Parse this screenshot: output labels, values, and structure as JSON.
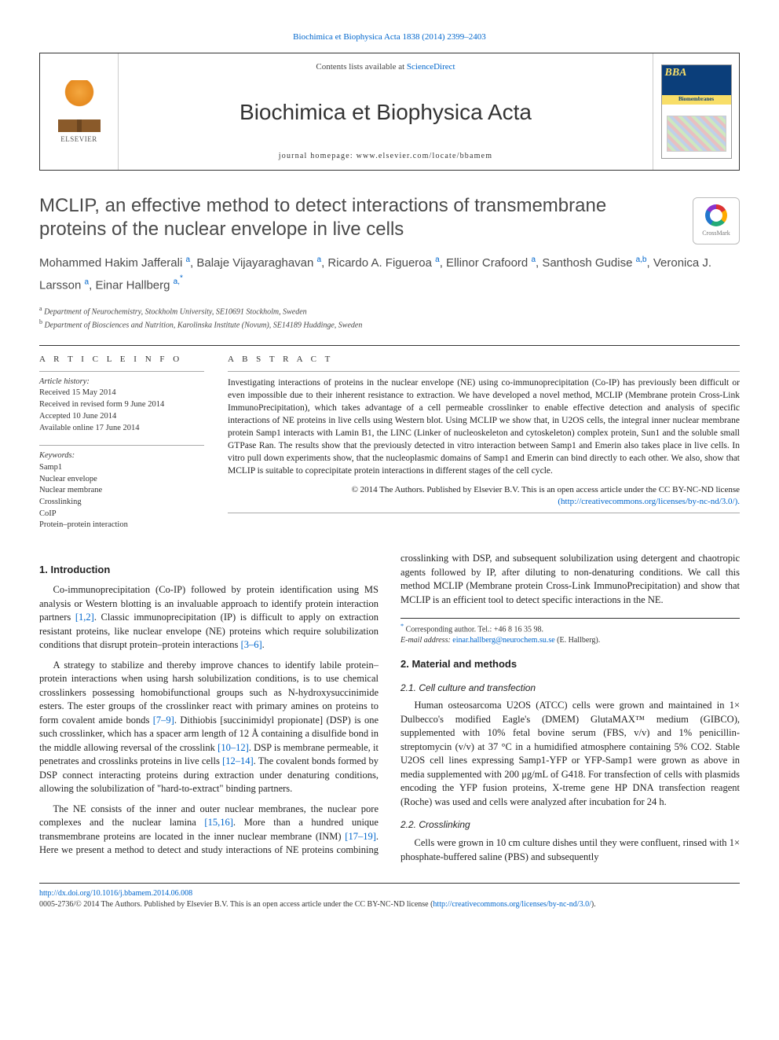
{
  "top_citation": "Biochimica et Biophysica Acta 1838 (2014) 2399–2403",
  "masthead": {
    "contents_prefix": "Contents lists available at ",
    "contents_link": "ScienceDirect",
    "journal": "Biochimica et Biophysica Acta",
    "homepage_prefix": "journal homepage: ",
    "homepage": "www.elsevier.com/locate/bbamem",
    "publisher": "ELSEVIER",
    "cover_tag": "BBA",
    "cover_sub": "Biomembranes"
  },
  "crossmark_label": "CrossMark",
  "title": "MCLIP, an effective method to detect interactions of transmembrane proteins of the nuclear envelope in live cells",
  "authors_html": "Mohammed Hakim Jafferali <sup>a</sup>, Balaje Vijayaraghavan <sup>a</sup>, Ricardo A. Figueroa <sup>a</sup>, Ellinor Crafoord <sup>a</sup>, Santhosh Gudise <sup>a,b</sup>, Veronica J. Larsson <sup>a</sup>, Einar Hallberg <sup>a,*</sup>",
  "affiliations": {
    "a": "Department of Neurochemistry, Stockholm University, SE10691 Stockholm, Sweden",
    "b": "Department of Biosciences and Nutrition, Karolinska Institute (Novum), SE14189 Huddinge, Sweden"
  },
  "info": {
    "heading": "A R T I C L E   I N F O",
    "history_label": "Article history:",
    "received": "Received 15 May 2014",
    "revised": "Received in revised form 9 June 2014",
    "accepted": "Accepted 10 June 2014",
    "online": "Available online 17 June 2014",
    "keywords_label": "Keywords:",
    "keywords": [
      "Samp1",
      "Nuclear envelope",
      "Nuclear membrane",
      "Crosslinking",
      "CoIP",
      "Protein–protein interaction"
    ]
  },
  "abstract": {
    "heading": "A B S T R A C T",
    "text": "Investigating interactions of proteins in the nuclear envelope (NE) using co-immunoprecipitation (Co-IP) has previously been difficult or even impossible due to their inherent resistance to extraction. We have developed a novel method, MCLIP (Membrane protein Cross-Link ImmunoPrecipitation), which takes advantage of a cell permeable crosslinker to enable effective detection and analysis of specific interactions of NE proteins in live cells using Western blot. Using MCLIP we show that, in U2OS cells, the integral inner nuclear membrane protein Samp1 interacts with Lamin B1, the LINC (Linker of nucleoskeleton and cytoskeleton) complex protein, Sun1 and the soluble small GTPase Ran. The results show that the previously detected in vitro interaction between Samp1 and Emerin also takes place in live cells. In vitro pull down experiments show, that the nucleoplasmic domains of Samp1 and Emerin can bind directly to each other. We also, show that MCLIP is suitable to coprecipitate protein interactions in different stages of the cell cycle.",
    "copyright": "© 2014 The Authors. Published by Elsevier B.V. This is an open access article under the CC BY-NC-ND license",
    "license_url": "(http://creativecommons.org/licenses/by-nc-nd/3.0/)."
  },
  "sections": {
    "s1_head": "1. Introduction",
    "s1_p1": "Co-immunoprecipitation (Co-IP) followed by protein identification using MS analysis or Western blotting is an invaluable approach to identify protein interaction partners [1,2]. Classic immunoprecipitation (IP) is difficult to apply on extraction resistant proteins, like nuclear envelope (NE) proteins which require solubilization conditions that disrupt protein–protein interactions [3–6].",
    "s1_p2": "A strategy to stabilize and thereby improve chances to identify labile protein–protein interactions when using harsh solubilization conditions, is to use chemical crosslinkers possessing homobifunctional groups such as N-hydroxysuccinimide esters. The ester groups of the crosslinker react with primary amines on proteins to form covalent amide bonds [7–9]. Dithiobis [succinimidyl propionate] (DSP) is one such crosslinker, which has a spacer arm length of 12 Å containing a disulfide bond in the middle allowing reversal of the crosslink [10–12]. DSP is membrane permeable, it penetrates and crosslinks proteins in live cells [12–14]. The covalent bonds formed by DSP connect interacting proteins during extraction under denaturing conditions, allowing the solubilization of \"hard-to-extract\" binding partners.",
    "s1_p3": "The NE consists of the inner and outer nuclear membranes, the nuclear pore complexes and the nuclear lamina [15,16]. More than a hundred unique transmembrane proteins are located in the inner nuclear membrane (INM) [17–19]. Here we present a method to detect and study interactions of NE proteins combining crosslinking with DSP, and subsequent solubilization using detergent and chaotropic agents followed by IP, after diluting to non-denaturing conditions. We call this method MCLIP (Membrane protein Cross-Link ImmunoPrecipitation) and show that MCLIP is an efficient tool to detect specific interactions in the NE.",
    "s2_head": "2. Material and methods",
    "s21_head": "2.1. Cell culture and transfection",
    "s21_p1": "Human osteosarcoma U2OS (ATCC) cells were grown and maintained in 1× Dulbecco's modified Eagle's (DMEM) GlutaMAX™ medium (GIBCO), supplemented with 10% fetal bovine serum (FBS, v/v) and 1% penicillin-streptomycin (v/v) at 37 °C in a humidified atmosphere containing 5% CO2. Stable U2OS cell lines expressing Samp1-YFP or YFP-Samp1 were grown as above in media supplemented with 200 μg/mL of G418. For transfection of cells with plasmids encoding the YFP fusion proteins, X-treme gene HP DNA transfection reagent (Roche) was used and cells were analyzed after incubation for 24 h.",
    "s22_head": "2.2. Crosslinking",
    "s22_p1": "Cells were grown in 10 cm culture dishes until they were confluent, rinsed with 1× phosphate-buffered saline (PBS) and subsequently"
  },
  "correspondence": {
    "star": "*",
    "line": "Corresponding author. Tel.: +46 8 16 35 98.",
    "email_label": "E-mail address:",
    "email": "einar.hallberg@neurochem.su.se",
    "email_who": "(E. Hallberg)."
  },
  "footer": {
    "doi": "http://dx.doi.org/10.1016/j.bbamem.2014.06.008",
    "issn_line": "0005-2736/© 2014 The Authors. Published by Elsevier B.V. This is an open access article under the CC BY-NC-ND license (",
    "license": "http://creativecommons.org/licenses/by-nc-nd/3.0/",
    "close": ")."
  },
  "colors": {
    "link": "#0066cc",
    "text": "#222222",
    "heading_gray": "#4a4a4a",
    "rule": "#333333"
  }
}
